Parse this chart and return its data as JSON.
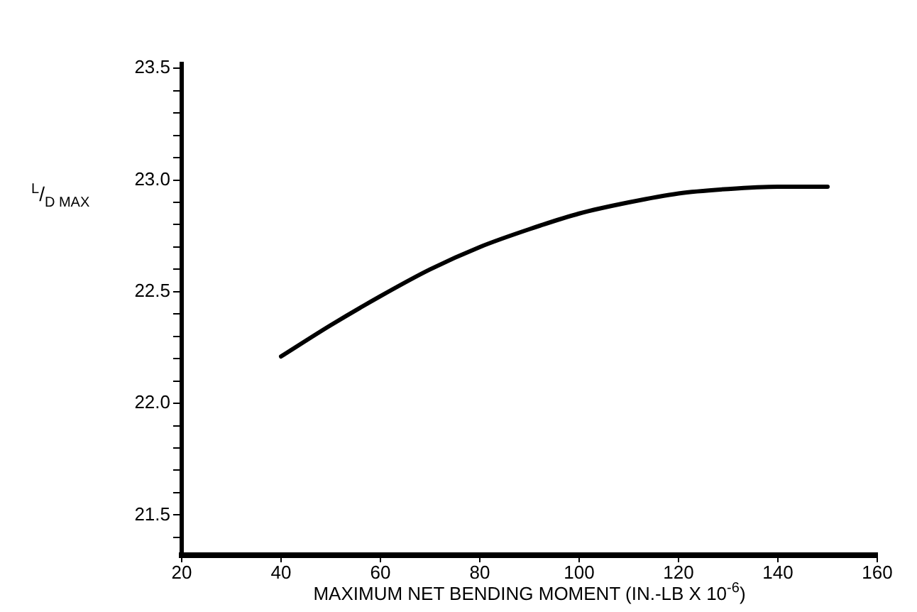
{
  "chart_data": {
    "type": "line",
    "xlabel": "MAXIMUM NET BENDING MOMENT (IN.-LB X 10$^{-6}$)",
    "ylabel": "$^{L}$/$_{D MAX}$",
    "x": [
      40,
      50,
      60,
      70,
      80,
      90,
      100,
      110,
      120,
      130,
      140,
      150
    ],
    "series": [
      {
        "color": "#000000",
        "values": [
          22.21,
          22.35,
          22.48,
          22.6,
          22.7,
          22.78,
          22.85,
          22.9,
          22.94,
          22.96,
          22.97,
          22.97
        ]
      }
    ],
    "xlim": [
      20,
      160
    ],
    "xticks": [
      20,
      40,
      60,
      80,
      100,
      120,
      140,
      160
    ],
    "ylim": [
      21.32,
      23.52
    ],
    "yticks": [
      {
        "value": 21.4,
        "label": null
      },
      21.5,
      {
        "value": 21.6,
        "label": null
      },
      {
        "value": 21.7,
        "label": null
      },
      {
        "value": 21.8,
        "label": null
      },
      {
        "value": 21.9,
        "label": null
      },
      {
        "value": 22.0,
        "label": "22.0"
      },
      {
        "value": 22.1,
        "label": null
      },
      {
        "value": 22.2,
        "label": null
      },
      {
        "value": 22.3,
        "label": null
      },
      {
        "value": 22.4,
        "label": null
      },
      22.5,
      {
        "value": 22.6,
        "label": null
      },
      {
        "value": 22.7,
        "label": null
      },
      {
        "value": 22.8,
        "label": null
      },
      {
        "value": 22.9,
        "label": null
      },
      {
        "value": 23.0,
        "label": "23.0"
      },
      {
        "value": 23.1,
        "label": null
      },
      {
        "value": 23.2,
        "label": null
      },
      {
        "value": 23.3,
        "label": null
      },
      {
        "value": 23.4,
        "label": null
      },
      23.5
    ],
    "grid": false,
    "legend": false,
    "marker": "none",
    "line_style": "solid"
  }
}
